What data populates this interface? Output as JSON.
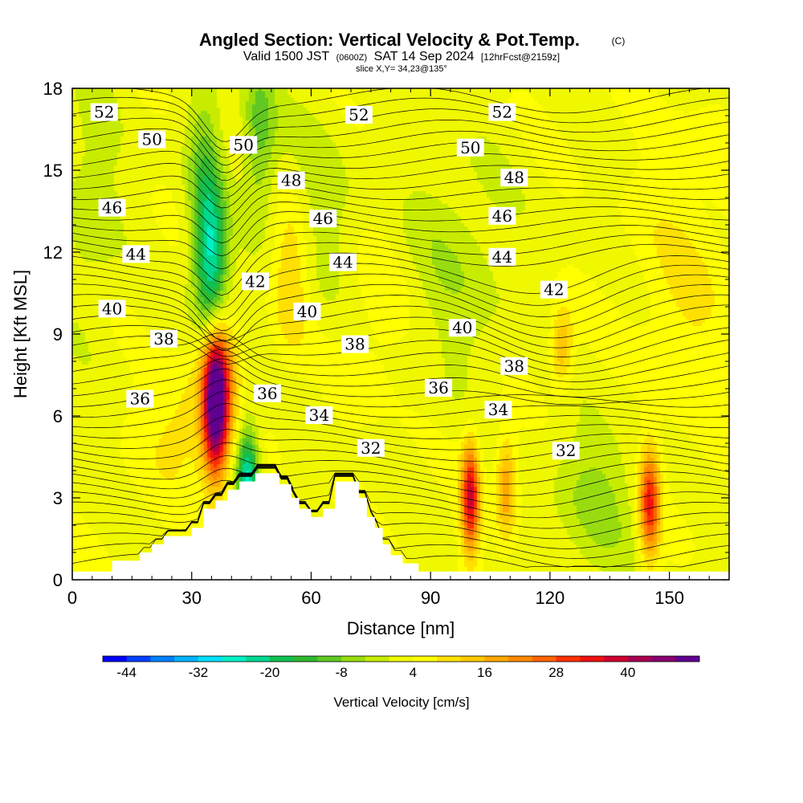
{
  "chart_data": {
    "type": "heatmap",
    "title": "Angled Section: Vertical Velocity & Pot.Temp.",
    "title_suffix": "(C)",
    "subtitle_parts": {
      "a": "Valid 1500 JST",
      "b": "(0600Z)",
      "c": "SAT 14 Sep 2024",
      "d": "[12hrFcst@2159z]"
    },
    "slice_label": "slice X,Y= 34,23@135°",
    "xlabel": "Distance [nm]",
    "ylabel": "Height [Kft MSL]",
    "xlim": [
      0,
      165
    ],
    "ylim": [
      0,
      18
    ],
    "x_ticks": [
      "0",
      "30",
      "60",
      "90",
      "120",
      "150"
    ],
    "x_tick_values": [
      0,
      30,
      60,
      90,
      120,
      150
    ],
    "y_ticks": [
      "0",
      "3",
      "6",
      "9",
      "12",
      "15",
      "18"
    ],
    "y_tick_values": [
      0,
      3,
      6,
      9,
      12,
      15,
      18
    ],
    "colorbar": {
      "title": "Vertical Velocity [cm/s]",
      "tick_labels": [
        "-44",
        "-32",
        "-20",
        "-8",
        "4",
        "16",
        "28",
        "40"
      ],
      "tick_values": [
        -44,
        -32,
        -20,
        -8,
        4,
        16,
        28,
        40
      ],
      "min": -48,
      "max": 52,
      "step": 4,
      "colors": [
        "#0000ff",
        "#0040ff",
        "#0080ff",
        "#00b4ff",
        "#00e0ff",
        "#00f0c8",
        "#00d890",
        "#10c050",
        "#30b830",
        "#60c820",
        "#98dc10",
        "#c8ec00",
        "#f0f800",
        "#ffff00",
        "#ffe000",
        "#ffc800",
        "#ffa800",
        "#ff8800",
        "#ff6400",
        "#ff3000",
        "#f01010",
        "#d00030",
        "#a80050",
        "#880070",
        "#600090"
      ]
    },
    "terrain": [
      [
        0,
        0.3
      ],
      [
        10,
        0.3
      ],
      [
        10,
        0.7
      ],
      [
        17,
        0.7
      ],
      [
        17,
        1.0
      ],
      [
        20,
        1.0
      ],
      [
        20,
        1.3
      ],
      [
        23,
        1.3
      ],
      [
        23,
        1.6
      ],
      [
        30,
        1.6
      ],
      [
        30,
        1.9
      ],
      [
        33,
        1.9
      ],
      [
        33,
        2.6
      ],
      [
        36,
        2.6
      ],
      [
        36,
        2.9
      ],
      [
        39,
        2.9
      ],
      [
        39,
        3.3
      ],
      [
        42,
        3.3
      ],
      [
        42,
        3.6
      ],
      [
        46,
        3.6
      ],
      [
        46,
        3.9
      ],
      [
        52,
        3.9
      ],
      [
        52,
        3.5
      ],
      [
        55,
        3.5
      ],
      [
        55,
        3.0
      ],
      [
        57,
        3.0
      ],
      [
        57,
        2.6
      ],
      [
        60,
        2.6
      ],
      [
        60,
        2.3
      ],
      [
        63,
        2.3
      ],
      [
        63,
        2.6
      ],
      [
        66,
        2.6
      ],
      [
        66,
        3.6
      ],
      [
        72,
        3.6
      ],
      [
        72,
        3.0
      ],
      [
        74,
        3.0
      ],
      [
        74,
        2.3
      ],
      [
        76,
        2.3
      ],
      [
        76,
        1.9
      ],
      [
        78,
        1.9
      ],
      [
        78,
        1.3
      ],
      [
        80,
        1.3
      ],
      [
        80,
        0.9
      ],
      [
        83,
        0.9
      ],
      [
        83,
        0.6
      ],
      [
        87,
        0.6
      ],
      [
        87,
        0.3
      ],
      [
        165,
        0.3
      ]
    ],
    "w_centers": [
      {
        "x": 36,
        "y": 6.3,
        "sx": 2.2,
        "sy": 1.8,
        "w": 48
      },
      {
        "x": 37,
        "y": 7.8,
        "sx": 3.5,
        "sy": 1.2,
        "w": 14
      },
      {
        "x": 100,
        "y": 3.0,
        "sx": 1.6,
        "sy": 1.4,
        "w": 34
      },
      {
        "x": 109,
        "y": 3.4,
        "sx": 1.8,
        "sy": 1.3,
        "w": 17
      },
      {
        "x": 145,
        "y": 2.8,
        "sx": 1.8,
        "sy": 1.4,
        "w": 30
      },
      {
        "x": 55,
        "y": 11.3,
        "sx": 3.5,
        "sy": 2.2,
        "w": 12
      },
      {
        "x": 123,
        "y": 8.5,
        "sx": 2.0,
        "sy": 1.0,
        "w": 14
      },
      {
        "x": 44,
        "y": 3.6,
        "sx": 2.0,
        "sy": 1.5,
        "w": -30
      },
      {
        "x": 35,
        "y": 11.5,
        "sx": 2.8,
        "sy": 2.0,
        "w": -24
      },
      {
        "x": 33,
        "y": 14.5,
        "sx": 3.0,
        "sy": 2.5,
        "w": -12
      },
      {
        "x": 47,
        "y": 16.5,
        "sx": 3.0,
        "sy": 2.0,
        "w": -13
      },
      {
        "x": 60,
        "y": 13.0,
        "sx": 8.0,
        "sy": 3.0,
        "w": -6
      },
      {
        "x": 96,
        "y": 11.5,
        "sx": 10.0,
        "sy": 3.0,
        "w": -6
      },
      {
        "x": 132,
        "y": 3.0,
        "sx": 8.0,
        "sy": 2.0,
        "w": -8
      },
      {
        "x": 30,
        "y": 5.5,
        "sx": 8.0,
        "sy": 1.5,
        "w": 8
      },
      {
        "x": 75,
        "y": 9.5,
        "sx": 8.0,
        "sy": 2.5,
        "w": 4
      },
      {
        "x": 155,
        "y": 10.5,
        "sx": 10.0,
        "sy": 4.0,
        "w": 5
      },
      {
        "x": 5,
        "y": 14.0,
        "sx": 5.0,
        "sy": 3.0,
        "w": -6
      }
    ],
    "contour_labels": [
      {
        "text": "52",
        "x": 8,
        "y": 17.1
      },
      {
        "text": "50",
        "x": 20,
        "y": 16.1
      },
      {
        "text": "50",
        "x": 43,
        "y": 15.9
      },
      {
        "text": "48",
        "x": 55,
        "y": 14.6
      },
      {
        "text": "46",
        "x": 10,
        "y": 13.6
      },
      {
        "text": "46",
        "x": 63,
        "y": 13.2
      },
      {
        "text": "44",
        "x": 16,
        "y": 11.9
      },
      {
        "text": "44",
        "x": 68,
        "y": 11.6
      },
      {
        "text": "42",
        "x": 46,
        "y": 10.9
      },
      {
        "text": "40",
        "x": 10,
        "y": 9.9
      },
      {
        "text": "40",
        "x": 59,
        "y": 9.8
      },
      {
        "text": "38",
        "x": 23,
        "y": 8.8
      },
      {
        "text": "38",
        "x": 71,
        "y": 8.6
      },
      {
        "text": "36",
        "x": 17,
        "y": 6.6
      },
      {
        "text": "36",
        "x": 49,
        "y": 6.8
      },
      {
        "text": "34",
        "x": 62,
        "y": 6.0
      },
      {
        "text": "32",
        "x": 75,
        "y": 4.8
      },
      {
        "text": "52",
        "x": 72,
        "y": 17.0
      },
      {
        "text": "52",
        "x": 108,
        "y": 17.1
      },
      {
        "text": "50",
        "x": 100,
        "y": 15.8
      },
      {
        "text": "48",
        "x": 111,
        "y": 14.7
      },
      {
        "text": "46",
        "x": 108,
        "y": 13.3
      },
      {
        "text": "44",
        "x": 108,
        "y": 11.8
      },
      {
        "text": "42",
        "x": 121,
        "y": 10.6
      },
      {
        "text": "40",
        "x": 98,
        "y": 9.2
      },
      {
        "text": "38",
        "x": 111,
        "y": 7.8
      },
      {
        "text": "36",
        "x": 92,
        "y": 7.0
      },
      {
        "text": "34",
        "x": 107,
        "y": 6.2
      },
      {
        "text": "32",
        "x": 124,
        "y": 4.7
      }
    ]
  }
}
